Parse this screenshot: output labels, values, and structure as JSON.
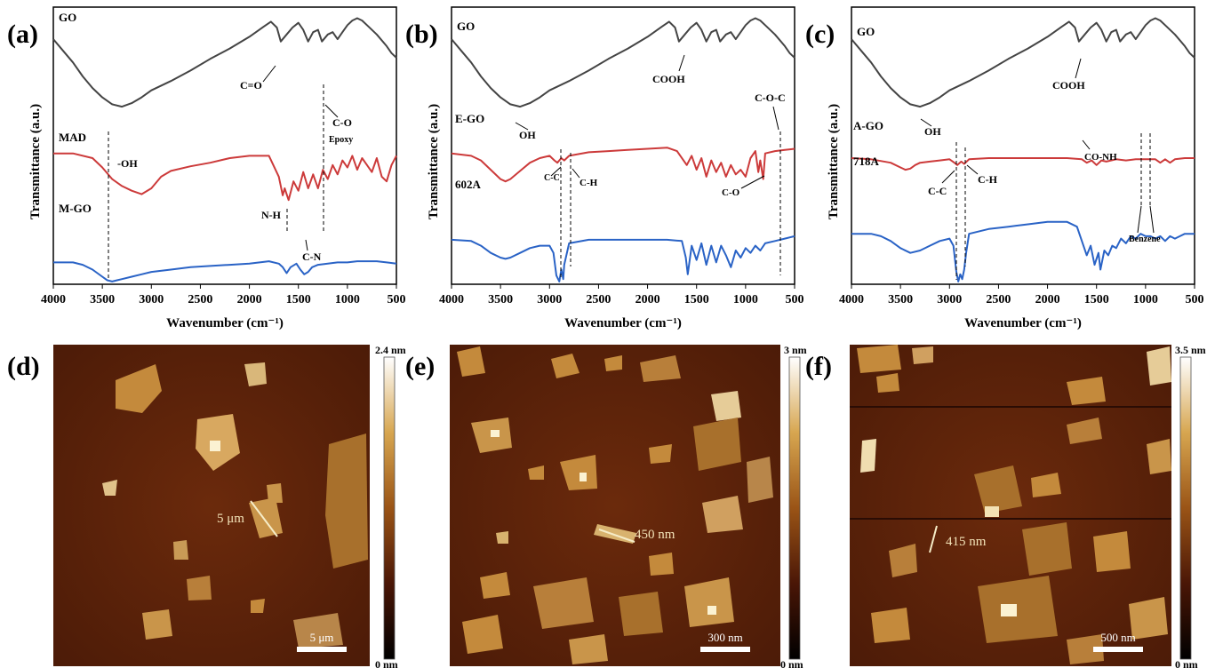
{
  "chart_data": [
    {
      "panel": "(a)",
      "type": "line",
      "xlabel": "Wavenumber (cm⁻¹)",
      "ylabel": "Transmittance (a.u.)",
      "xlim": [
        4000,
        500
      ],
      "xticks": [
        "4000",
        "3500",
        "3000",
        "2500",
        "2000",
        "1500",
        "1000",
        "500"
      ],
      "series": [
        {
          "name": "GO",
          "color": "#444444",
          "x": [
            4000,
            3900,
            3800,
            3700,
            3600,
            3500,
            3400,
            3300,
            3200,
            3100,
            3000,
            2800,
            2600,
            2400,
            2200,
            2000,
            1850,
            1780,
            1720,
            1680,
            1620,
            1560,
            1500,
            1450,
            1400,
            1350,
            1300,
            1260,
            1200,
            1150,
            1100,
            1050,
            1000,
            950,
            900,
            850,
            800,
            700,
            600,
            550,
            500
          ],
          "y": [
            0.82,
            0.72,
            0.62,
            0.5,
            0.4,
            0.32,
            0.26,
            0.24,
            0.27,
            0.32,
            0.38,
            0.46,
            0.55,
            0.65,
            0.74,
            0.84,
            0.93,
            0.97,
            0.92,
            0.8,
            0.86,
            0.92,
            0.96,
            0.9,
            0.8,
            0.88,
            0.9,
            0.8,
            0.86,
            0.88,
            0.82,
            0.88,
            0.94,
            0.98,
            1.0,
            0.98,
            0.94,
            0.86,
            0.76,
            0.7,
            0.66
          ]
        },
        {
          "name": "MAD",
          "color": "#cc3a3a",
          "x": [
            4000,
            3800,
            3600,
            3500,
            3400,
            3300,
            3200,
            3100,
            3000,
            2900,
            2800,
            2600,
            2400,
            2200,
            2000,
            1800,
            1700,
            1660,
            1640,
            1600,
            1550,
            1500,
            1450,
            1400,
            1350,
            1300,
            1250,
            1200,
            1150,
            1100,
            1050,
            1000,
            950,
            900,
            850,
            800,
            750,
            700,
            650,
            600,
            550,
            500
          ],
          "y": [
            0.6,
            0.6,
            0.56,
            0.48,
            0.38,
            0.32,
            0.28,
            0.25,
            0.3,
            0.4,
            0.45,
            0.49,
            0.52,
            0.56,
            0.58,
            0.58,
            0.4,
            0.24,
            0.3,
            0.2,
            0.36,
            0.28,
            0.44,
            0.3,
            0.42,
            0.3,
            0.46,
            0.38,
            0.5,
            0.42,
            0.54,
            0.48,
            0.58,
            0.46,
            0.56,
            0.5,
            0.44,
            0.56,
            0.4,
            0.36,
            0.5,
            0.58
          ]
        },
        {
          "name": "M-GO",
          "color": "#2a63c6",
          "x": [
            4000,
            3800,
            3700,
            3600,
            3500,
            3450,
            3400,
            3350,
            3300,
            3200,
            3100,
            3000,
            2800,
            2600,
            2400,
            2200,
            2000,
            1800,
            1700,
            1660,
            1620,
            1580,
            1520,
            1480,
            1440,
            1400,
            1360,
            1300,
            1200,
            1100,
            1000,
            900,
            800,
            700,
            600,
            500
          ],
          "y": [
            0.16,
            0.16,
            0.14,
            0.1,
            0.04,
            0.01,
            0.0,
            0.01,
            0.02,
            0.04,
            0.06,
            0.08,
            0.1,
            0.12,
            0.13,
            0.14,
            0.15,
            0.17,
            0.15,
            0.12,
            0.07,
            0.12,
            0.15,
            0.1,
            0.06,
            0.08,
            0.12,
            0.14,
            0.15,
            0.16,
            0.16,
            0.17,
            0.17,
            0.17,
            0.16,
            0.15
          ]
        }
      ],
      "annotations": [
        "C=O",
        "C-O",
        "Epoxy",
        "-OH",
        "N-H",
        "C-N"
      ]
    },
    {
      "panel": "(b)",
      "type": "line",
      "xlabel": "Wavenumber (cm⁻¹)",
      "ylabel": "Transmittance (a.u.)",
      "xlim": [
        4000,
        500
      ],
      "xticks": [
        "4000",
        "3500",
        "3000",
        "2500",
        "2000",
        "1500",
        "1000",
        "500"
      ],
      "series": [
        {
          "name": "GO",
          "color": "#444444",
          "x": [
            4000,
            3900,
            3800,
            3700,
            3600,
            3500,
            3400,
            3300,
            3200,
            3100,
            3000,
            2800,
            2600,
            2400,
            2200,
            2000,
            1850,
            1780,
            1720,
            1680,
            1620,
            1560,
            1500,
            1450,
            1400,
            1350,
            1300,
            1260,
            1200,
            1150,
            1100,
            1050,
            1000,
            950,
            900,
            850,
            800,
            700,
            600,
            550,
            500
          ],
          "y": [
            0.82,
            0.72,
            0.62,
            0.5,
            0.4,
            0.32,
            0.26,
            0.24,
            0.27,
            0.32,
            0.38,
            0.46,
            0.55,
            0.65,
            0.74,
            0.84,
            0.93,
            0.97,
            0.92,
            0.8,
            0.86,
            0.92,
            0.96,
            0.9,
            0.8,
            0.88,
            0.9,
            0.8,
            0.86,
            0.88,
            0.82,
            0.88,
            0.94,
            0.98,
            1.0,
            0.98,
            0.94,
            0.86,
            0.76,
            0.7,
            0.66
          ]
        },
        {
          "name": "E-GO",
          "color": "#cc3a3a",
          "x": [
            4000,
            3800,
            3700,
            3600,
            3500,
            3450,
            3400,
            3300,
            3200,
            3100,
            3000,
            2950,
            2920,
            2880,
            2850,
            2800,
            2600,
            2400,
            2200,
            2000,
            1800,
            1700,
            1600,
            1550,
            1500,
            1450,
            1400,
            1350,
            1300,
            1250,
            1200,
            1150,
            1100,
            1050,
            1000,
            950,
            900,
            870,
            850,
            820,
            800,
            700,
            600,
            500
          ],
          "y": [
            0.6,
            0.58,
            0.54,
            0.46,
            0.38,
            0.36,
            0.38,
            0.45,
            0.52,
            0.56,
            0.58,
            0.54,
            0.52,
            0.56,
            0.54,
            0.58,
            0.61,
            0.62,
            0.63,
            0.64,
            0.65,
            0.62,
            0.5,
            0.58,
            0.46,
            0.56,
            0.4,
            0.54,
            0.44,
            0.52,
            0.4,
            0.5,
            0.42,
            0.46,
            0.4,
            0.56,
            0.62,
            0.44,
            0.54,
            0.38,
            0.6,
            0.62,
            0.63,
            0.64
          ]
        },
        {
          "name": "602A",
          "color": "#2a63c6",
          "x": [
            4000,
            3800,
            3700,
            3600,
            3500,
            3450,
            3400,
            3300,
            3200,
            3100,
            3000,
            2960,
            2930,
            2900,
            2880,
            2860,
            2850,
            2800,
            2600,
            2400,
            2200,
            2000,
            1800,
            1650,
            1610,
            1590,
            1550,
            1500,
            1450,
            1400,
            1350,
            1300,
            1250,
            1200,
            1150,
            1100,
            1050,
            1000,
            950,
            900,
            850,
            800,
            700,
            600,
            500
          ],
          "y": [
            0.35,
            0.34,
            0.3,
            0.24,
            0.2,
            0.19,
            0.2,
            0.24,
            0.28,
            0.3,
            0.3,
            0.24,
            0.05,
            0.0,
            0.1,
            0.02,
            0.14,
            0.32,
            0.35,
            0.35,
            0.35,
            0.35,
            0.35,
            0.34,
            0.2,
            0.06,
            0.3,
            0.18,
            0.32,
            0.14,
            0.3,
            0.16,
            0.3,
            0.22,
            0.12,
            0.26,
            0.2,
            0.28,
            0.24,
            0.3,
            0.26,
            0.32,
            0.34,
            0.36,
            0.38
          ]
        }
      ],
      "annotations": [
        "COOH",
        "OH",
        "C-O-C",
        "C-C",
        "C-H",
        "C-O"
      ]
    },
    {
      "panel": "(c)",
      "type": "line",
      "xlabel": "Wavenumber (cm⁻¹)",
      "ylabel": "Transmittance (a.u.)",
      "xlim": [
        4000,
        500
      ],
      "xticks": [
        "4000",
        "3500",
        "3000",
        "2500",
        "2000",
        "1500",
        "1000",
        "500"
      ],
      "series": [
        {
          "name": "GO",
          "color": "#444444",
          "x": [
            4000,
            3900,
            3800,
            3700,
            3600,
            3500,
            3400,
            3300,
            3200,
            3100,
            3000,
            2800,
            2600,
            2400,
            2200,
            2000,
            1850,
            1780,
            1720,
            1680,
            1620,
            1560,
            1500,
            1450,
            1400,
            1350,
            1300,
            1260,
            1200,
            1150,
            1100,
            1050,
            1000,
            950,
            900,
            850,
            800,
            700,
            600,
            550,
            500
          ],
          "y": [
            0.82,
            0.72,
            0.62,
            0.5,
            0.4,
            0.32,
            0.26,
            0.24,
            0.27,
            0.32,
            0.38,
            0.46,
            0.55,
            0.65,
            0.74,
            0.84,
            0.93,
            0.97,
            0.92,
            0.8,
            0.86,
            0.92,
            0.96,
            0.9,
            0.8,
            0.88,
            0.9,
            0.8,
            0.86,
            0.88,
            0.82,
            0.88,
            0.94,
            0.98,
            1.0,
            0.98,
            0.94,
            0.86,
            0.76,
            0.7,
            0.66
          ]
        },
        {
          "name": "A-GO",
          "color": "#cc3a3a",
          "x": [
            4000,
            3800,
            3600,
            3500,
            3450,
            3400,
            3350,
            3300,
            3200,
            3100,
            3000,
            2950,
            2920,
            2880,
            2850,
            2800,
            2600,
            2400,
            2200,
            2000,
            1800,
            1650,
            1600,
            1550,
            1500,
            1450,
            1400,
            1300,
            1200,
            1100,
            1000,
            900,
            850,
            800,
            750,
            700,
            600,
            500
          ],
          "y": [
            0.56,
            0.55,
            0.52,
            0.48,
            0.46,
            0.47,
            0.5,
            0.52,
            0.53,
            0.54,
            0.55,
            0.52,
            0.5,
            0.53,
            0.51,
            0.55,
            0.56,
            0.56,
            0.56,
            0.56,
            0.56,
            0.55,
            0.52,
            0.54,
            0.5,
            0.54,
            0.53,
            0.55,
            0.54,
            0.55,
            0.55,
            0.55,
            0.52,
            0.55,
            0.52,
            0.55,
            0.56,
            0.56
          ]
        },
        {
          "name": "718A",
          "color": "#2a63c6",
          "x": [
            4000,
            3800,
            3700,
            3600,
            3500,
            3400,
            3300,
            3200,
            3100,
            3000,
            2960,
            2930,
            2910,
            2890,
            2870,
            2850,
            2830,
            2800,
            2600,
            2400,
            2200,
            2000,
            1800,
            1700,
            1650,
            1600,
            1560,
            1520,
            1480,
            1460,
            1420,
            1380,
            1340,
            1300,
            1250,
            1200,
            1150,
            1100,
            1050,
            1000,
            950,
            900,
            850,
            800,
            750,
            700,
            650,
            600,
            550,
            500
          ],
          "y": [
            0.4,
            0.4,
            0.38,
            0.34,
            0.28,
            0.24,
            0.26,
            0.3,
            0.34,
            0.36,
            0.3,
            0.08,
            0.0,
            0.06,
            0.02,
            0.1,
            0.24,
            0.4,
            0.44,
            0.46,
            0.48,
            0.5,
            0.5,
            0.46,
            0.34,
            0.22,
            0.3,
            0.14,
            0.24,
            0.1,
            0.26,
            0.22,
            0.3,
            0.28,
            0.36,
            0.32,
            0.38,
            0.36,
            0.4,
            0.38,
            0.38,
            0.36,
            0.38,
            0.34,
            0.38,
            0.36,
            0.38,
            0.4,
            0.4,
            0.4
          ]
        }
      ],
      "annotations": [
        "COOH",
        "OH",
        "CO-NH",
        "C-C",
        "C-H",
        "Benzene"
      ]
    }
  ],
  "afm_panels": [
    {
      "panel": "(d)",
      "scale_max": "2.4 nm",
      "scale_min": "0 nm",
      "measure_label": "5 μm",
      "scalebar_label": "5 μm"
    },
    {
      "panel": "(e)",
      "scale_max": "3 nm",
      "scale_min": "0 nm",
      "measure_label": "450 nm",
      "scalebar_label": "300 nm"
    },
    {
      "panel": "(f)",
      "scale_max": "3.5 nm",
      "scale_min": "0 nm",
      "measure_label": "415 nm",
      "scalebar_label": "500 nm"
    }
  ],
  "colors": {
    "afm_dark": "#3a1006",
    "afm_mid": "#6b2a0c",
    "afm_flake": "#c48a3c",
    "afm_bright": "#f3e2b4"
  }
}
